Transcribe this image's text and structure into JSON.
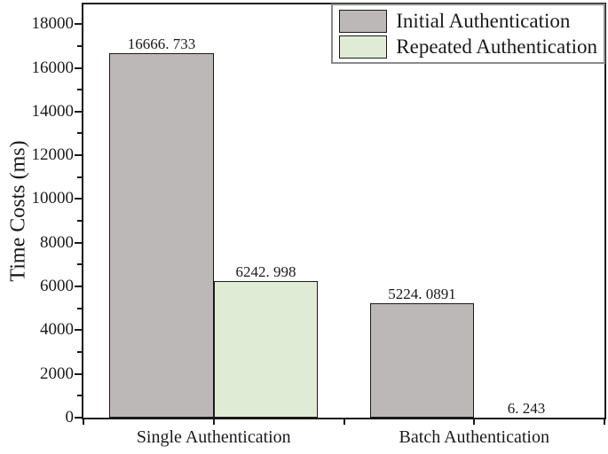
{
  "chart_data": {
    "type": "bar",
    "title": "",
    "xlabel": "",
    "ylabel": "Time Costs (ms)",
    "categories": [
      "Single Authentication",
      "Batch Authentication"
    ],
    "series": [
      {
        "name": "Initial Authentication",
        "color": "#bdb8b8",
        "values": [
          16666.733,
          5224.0891
        ],
        "value_labels": [
          "16666. 733",
          "5224. 0891"
        ]
      },
      {
        "name": "Repeated Authentication",
        "color": "#e0ebd6",
        "values": [
          6242.998,
          6.243
        ],
        "value_labels": [
          "6242. 998",
          "6. 243"
        ]
      }
    ],
    "ylim": [
      0,
      18900
    ],
    "ytick_step": 2000,
    "yminor_step": 1000,
    "ytick_labels": [
      "0",
      "2000",
      "4000",
      "6000",
      "8000",
      "10000",
      "12000",
      "14000",
      "16000",
      "18000"
    ],
    "grid": false,
    "legend_position": "top-right",
    "background": "#ffffff",
    "axis_color": "#1a1a1a",
    "bar_border_color": "#1a1a1a",
    "legend_border_color": "#8a8a8a"
  }
}
